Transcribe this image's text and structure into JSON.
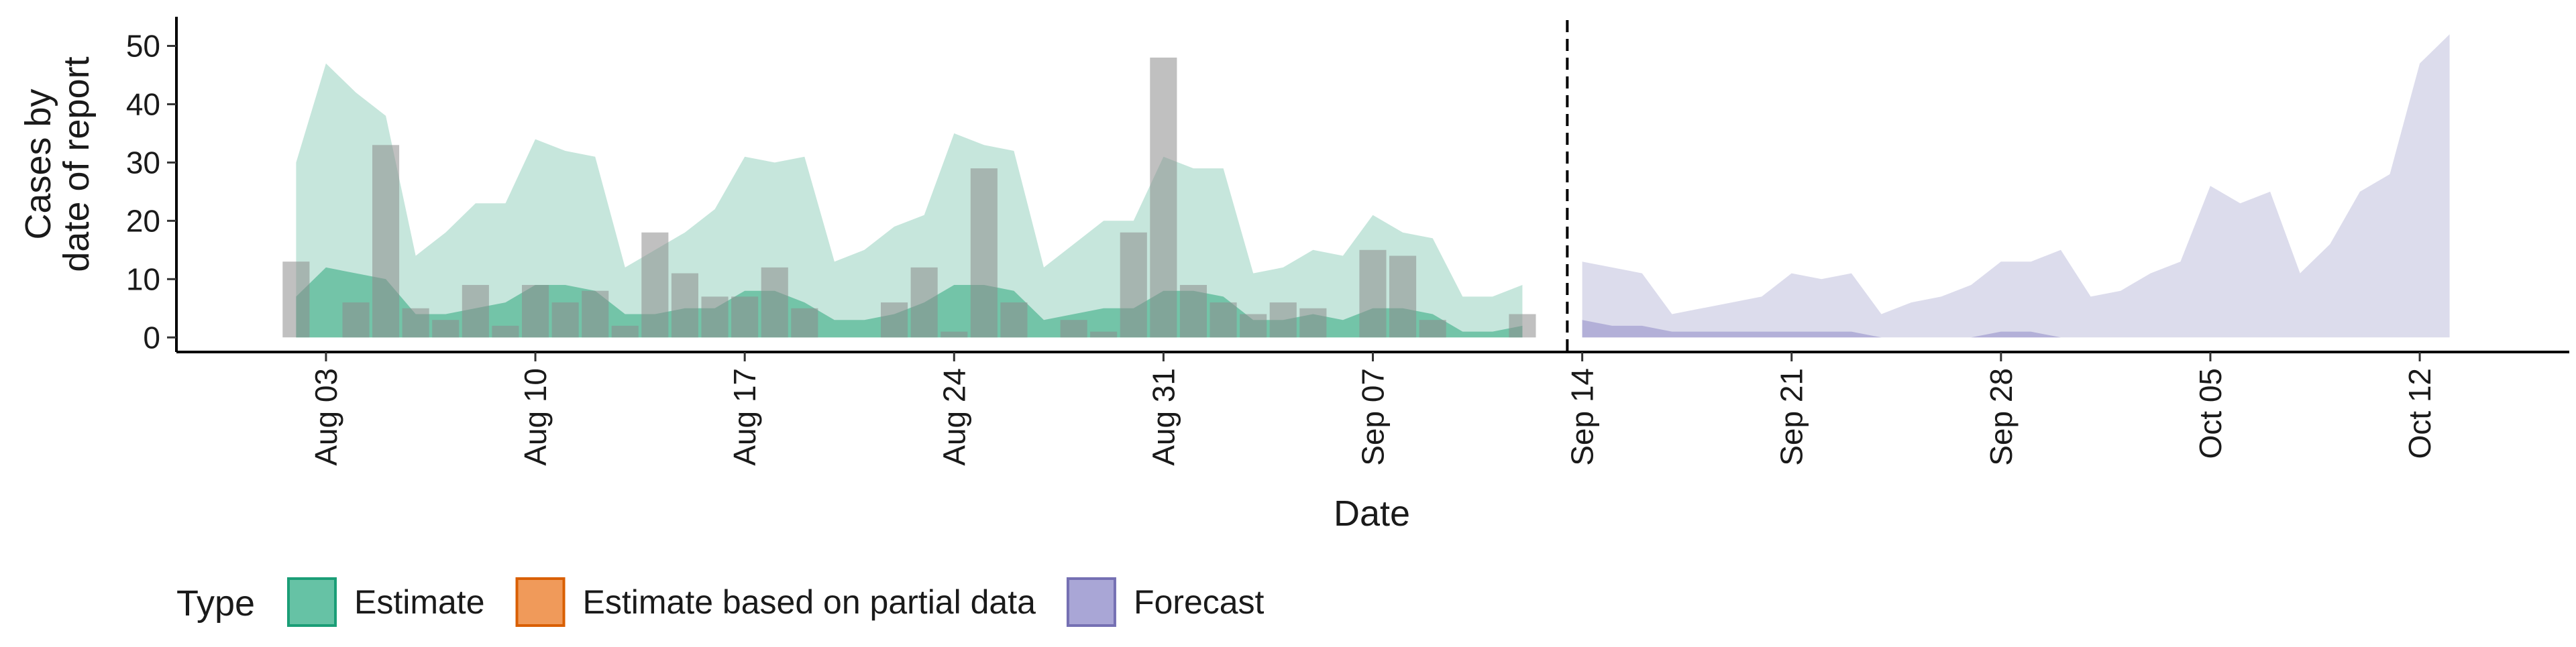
{
  "chart_data": {
    "type": "area",
    "xlabel": "Date",
    "ylabel_lines": [
      "Cases by",
      "date of report"
    ],
    "ylim": [
      -2.5,
      55
    ],
    "yticks": [
      0,
      10,
      20,
      30,
      40,
      50
    ],
    "xlim": [
      "2021-07-29",
      "2021-10-17"
    ],
    "xticks": [
      {
        "date": "2021-08-03",
        "label": "Aug 03"
      },
      {
        "date": "2021-08-10",
        "label": "Aug 10"
      },
      {
        "date": "2021-08-17",
        "label": "Aug 17"
      },
      {
        "date": "2021-08-24",
        "label": "Aug 24"
      },
      {
        "date": "2021-08-31",
        "label": "Aug 31"
      },
      {
        "date": "2021-09-07",
        "label": "Sep 07"
      },
      {
        "date": "2021-09-14",
        "label": "Sep 14"
      },
      {
        "date": "2021-09-21",
        "label": "Sep 21"
      },
      {
        "date": "2021-09-28",
        "label": "Sep 28"
      },
      {
        "date": "2021-10-05",
        "label": "Oct 05"
      },
      {
        "date": "2021-10-12",
        "label": "Oct 12"
      }
    ],
    "forecast_divider_date": "2021-09-13",
    "bars": {
      "start_date": "2021-08-02",
      "values": [
        13,
        0,
        6,
        33,
        5,
        3,
        9,
        2,
        9,
        6,
        8,
        2,
        18,
        11,
        7,
        7,
        12,
        5,
        0,
        0,
        6,
        12,
        1,
        29,
        6,
        0,
        3,
        1,
        18,
        48,
        9,
        6,
        4,
        6,
        5,
        0,
        15,
        14,
        3,
        0,
        0,
        4
      ],
      "color": "#8c8c8c"
    },
    "series": [
      {
        "name": "Estimate",
        "start_date": "2021-08-02",
        "outer_upper": [
          30,
          47,
          42,
          38,
          14,
          18,
          23,
          23,
          34,
          32,
          31,
          12,
          15,
          18,
          22,
          31,
          30,
          31,
          13,
          15,
          19,
          21,
          35,
          33,
          32,
          12,
          16,
          20,
          20,
          31,
          29,
          29,
          11,
          12,
          15,
          14,
          21,
          18,
          17,
          7,
          7,
          9
        ],
        "outer_lower": [
          0,
          0,
          0,
          0,
          0,
          0,
          0,
          0,
          0,
          0,
          0,
          0,
          0,
          0,
          0,
          0,
          0,
          0,
          0,
          0,
          0,
          0,
          0,
          0,
          0,
          0,
          0,
          0,
          0,
          0,
          0,
          0,
          0,
          0,
          0,
          0,
          0,
          0,
          0,
          0,
          0,
          0
        ],
        "inner_upper": [
          7,
          12,
          11,
          10,
          4,
          4,
          5,
          6,
          9,
          9,
          8,
          4,
          4,
          5,
          5,
          8,
          8,
          6,
          3,
          3,
          4,
          6,
          9,
          9,
          8,
          3,
          4,
          5,
          5,
          8,
          8,
          7,
          3,
          3,
          4,
          3,
          5,
          5,
          4,
          1,
          1,
          2
        ],
        "inner_lower": [
          0,
          0,
          0,
          0,
          0,
          0,
          0,
          0,
          0,
          0,
          0,
          0,
          0,
          0,
          0,
          0,
          0,
          0,
          0,
          0,
          0,
          0,
          0,
          0,
          0,
          0,
          0,
          0,
          0,
          0,
          0,
          0,
          0,
          0,
          0,
          0,
          0,
          0,
          0,
          0,
          0,
          0
        ],
        "outer_color": "#c6e6dc",
        "inner_color": "#73c4a8"
      },
      {
        "name": "Forecast",
        "start_date": "2021-09-14",
        "outer_upper": [
          13,
          12,
          11,
          4,
          5,
          6,
          7,
          11,
          10,
          11,
          4,
          6,
          7,
          9,
          13,
          13,
          15,
          7,
          8,
          11,
          13,
          26,
          23,
          25,
          11,
          16,
          25,
          28,
          47,
          52
        ],
        "outer_lower": [
          0,
          0,
          0,
          0,
          0,
          0,
          0,
          0,
          0,
          0,
          0,
          0,
          0,
          0,
          0,
          0,
          0,
          0,
          0,
          0,
          0,
          0,
          0,
          0,
          0,
          0,
          0,
          0,
          0,
          0
        ],
        "inner_upper": [
          3,
          2,
          2,
          1,
          1,
          1,
          1,
          1,
          1,
          1,
          0,
          0,
          0,
          0,
          1,
          1,
          0,
          0,
          0,
          0,
          0,
          0,
          0,
          0,
          0,
          0,
          0,
          0,
          0,
          0
        ],
        "inner_lower": [
          0,
          0,
          0,
          0,
          0,
          0,
          0,
          0,
          0,
          0,
          0,
          0,
          0,
          0,
          0,
          0,
          0,
          0,
          0,
          0,
          0,
          0,
          0,
          0,
          0,
          0,
          0,
          0,
          0,
          0
        ],
        "outer_color": "#dcdcec",
        "inner_color": "#b3b0d8"
      }
    ],
    "legend": {
      "title": "Type",
      "position": "bottom-left",
      "items": [
        {
          "label": "Estimate",
          "fill": "#66c2a5",
          "stroke": "#1b9e77"
        },
        {
          "label": "Estimate based on partial data",
          "fill": "#f09a5a",
          "stroke": "#d95f02"
        },
        {
          "label": "Forecast",
          "fill": "#a9a6d6",
          "stroke": "#7570b3"
        }
      ]
    },
    "grid": false
  }
}
